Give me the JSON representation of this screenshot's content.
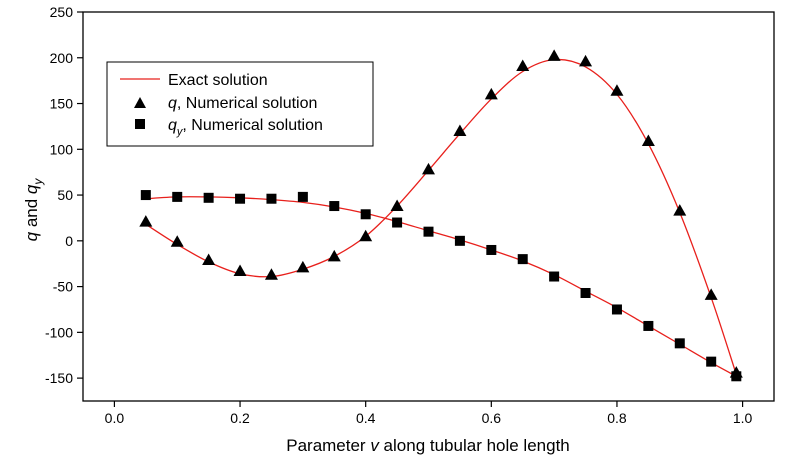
{
  "chart_data": {
    "type": "line",
    "title": "",
    "xlabel": {
      "prefix": "Parameter ",
      "var": "v",
      "suffix": " along tubular hole length"
    },
    "ylabel": {
      "q": "q",
      "and": " and ",
      "qy": "q",
      "sub": "y"
    },
    "xlim": [
      -0.05,
      1.05
    ],
    "ylim": [
      -175,
      250
    ],
    "xticks": [
      0.0,
      0.2,
      0.4,
      0.6,
      0.8,
      1.0
    ],
    "xtick_labels": [
      "0.0",
      "0.2",
      "0.4",
      "0.6",
      "0.8",
      "1.0"
    ],
    "yticks": [
      -150,
      -100,
      -50,
      0,
      50,
      100,
      150,
      200,
      250
    ],
    "ytick_labels": [
      "-150",
      "-100",
      "-50",
      "0",
      "50",
      "100",
      "150",
      "200",
      "250"
    ],
    "grid": false,
    "legend_position": "top-left",
    "colors": {
      "exact": "#e8201c",
      "markers": "#000000"
    },
    "series": [
      {
        "name": "Exact solution",
        "kind": "line",
        "curves": [
          {
            "x": [
              0.05,
              0.1,
              0.15,
              0.2,
              0.25,
              0.3,
              0.35,
              0.4,
              0.45,
              0.5,
              0.55,
              0.6,
              0.65,
              0.7,
              0.75,
              0.8,
              0.85,
              0.9,
              0.95,
              0.99
            ],
            "y": [
              18,
              -4,
              -23,
              -36,
              -39,
              -31,
              -17,
              5,
              38,
              77,
              117,
              155,
              185,
              198,
              190,
              160,
              106,
              31,
              -62,
              -146
            ]
          },
          {
            "x": [
              0.05,
              0.1,
              0.15,
              0.2,
              0.25,
              0.3,
              0.35,
              0.4,
              0.45,
              0.5,
              0.55,
              0.6,
              0.65,
              0.7,
              0.75,
              0.8,
              0.85,
              0.9,
              0.95,
              0.99
            ],
            "y": [
              46,
              48,
              48,
              47,
              45,
              42,
              37,
              30,
              21,
              11,
              1,
              -10,
              -22,
              -37,
              -55,
              -73,
              -93,
              -113,
              -133,
              -148
            ]
          }
        ]
      },
      {
        "name": {
          "var": "q",
          "text": ", Numerical solution"
        },
        "kind": "triangle",
        "x": [
          0.05,
          0.1,
          0.15,
          0.2,
          0.25,
          0.3,
          0.35,
          0.4,
          0.45,
          0.5,
          0.55,
          0.6,
          0.65,
          0.7,
          0.75,
          0.8,
          0.85,
          0.9,
          0.95,
          0.99
        ],
        "y": [
          21,
          -1,
          -21,
          -33,
          -37,
          -29,
          -17,
          5,
          38,
          78,
          120,
          160,
          191,
          202,
          196,
          164,
          109,
          33,
          -59,
          -144
        ]
      },
      {
        "name": {
          "var": "q",
          "sub": "y",
          "text": ", Numerical solution"
        },
        "kind": "square",
        "x": [
          0.05,
          0.1,
          0.15,
          0.2,
          0.25,
          0.3,
          0.35,
          0.4,
          0.45,
          0.5,
          0.55,
          0.6,
          0.65,
          0.7,
          0.75,
          0.8,
          0.85,
          0.9,
          0.95,
          0.99
        ],
        "y": [
          50,
          48,
          47,
          46,
          46,
          48,
          38,
          29,
          20,
          10,
          0,
          -10,
          -20,
          -39,
          -57,
          -75,
          -93,
          -112,
          -132,
          -148
        ]
      }
    ]
  }
}
